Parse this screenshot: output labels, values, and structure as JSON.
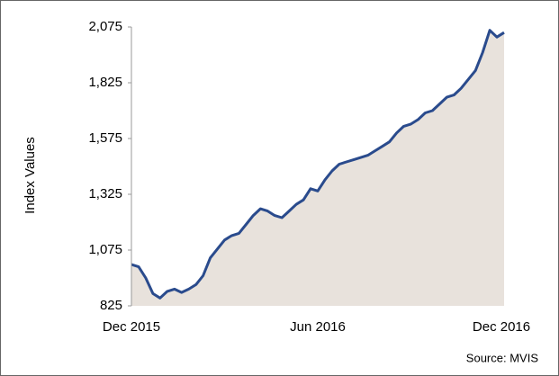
{
  "chart_data": {
    "type": "area",
    "ylabel": "Index Values",
    "source": "Source: MVIS",
    "categories": [
      "Dec 2015",
      null,
      null,
      null,
      null,
      null,
      null,
      null,
      null,
      null,
      null,
      null,
      null,
      null,
      null,
      null,
      null,
      null,
      null,
      null,
      null,
      null,
      null,
      null,
      null,
      null,
      "Jun 2016",
      null,
      null,
      null,
      null,
      null,
      null,
      null,
      null,
      null,
      null,
      null,
      null,
      null,
      null,
      null,
      null,
      null,
      null,
      null,
      null,
      null,
      null,
      null,
      null,
      null,
      "Dec 2016"
    ],
    "series": [
      {
        "color": "#2a4b8d",
        "fill": "#e8e2dc",
        "values": [
          1010,
          1000,
          950,
          880,
          860,
          890,
          900,
          885,
          900,
          920,
          960,
          1040,
          1080,
          1120,
          1140,
          1150,
          1190,
          1230,
          1260,
          1250,
          1230,
          1220,
          1250,
          1280,
          1300,
          1350,
          1340,
          1390,
          1430,
          1460,
          1470,
          1480,
          1490,
          1500,
          1520,
          1540,
          1560,
          1600,
          1630,
          1640,
          1660,
          1690,
          1700,
          1730,
          1760,
          1770,
          1800,
          1840,
          1880,
          1960,
          2060,
          2030,
          2050
        ]
      }
    ],
    "ylim": [
      825,
      2075
    ],
    "yticks": [
      825,
      {
        "value": 1075,
        "label": "1,075"
      },
      {
        "value": 1325,
        "label": "1,325"
      },
      {
        "value": 1575,
        "label": "1,575"
      },
      {
        "value": 1825,
        "label": "1,825"
      },
      {
        "value": 2075,
        "label": "2,075"
      }
    ],
    "grid": false
  }
}
